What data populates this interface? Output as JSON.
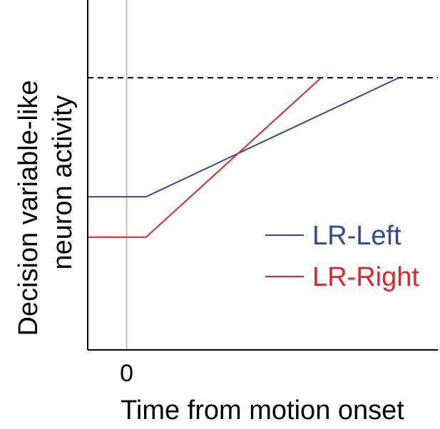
{
  "chart_data": {
    "type": "line",
    "title": "",
    "xlabel": "Time from motion onset",
    "ylabel": "Decision variable-like neuron activity",
    "ylabel_lines": [
      "Decision variable-like",
      "neuron activity"
    ],
    "xlim": [
      -0.5,
      4.0
    ],
    "ylim": [
      0,
      4.5
    ],
    "x_ticks": [
      {
        "value": 0,
        "label": "0"
      }
    ],
    "threshold": {
      "value": 3.5,
      "style": "dashed"
    },
    "reference_line_x": 0,
    "grid": false,
    "legend_position": "lower-right",
    "series": [
      {
        "name": "LR-Left",
        "color": "#2f4a9e",
        "x": [
          -0.5,
          0.25,
          3.5
        ],
        "y": [
          1.97,
          1.97,
          3.5
        ]
      },
      {
        "name": "LR-Right",
        "color": "#e0242c",
        "x": [
          -0.5,
          0.25,
          2.5
        ],
        "y": [
          1.45,
          1.45,
          3.5
        ]
      }
    ]
  }
}
